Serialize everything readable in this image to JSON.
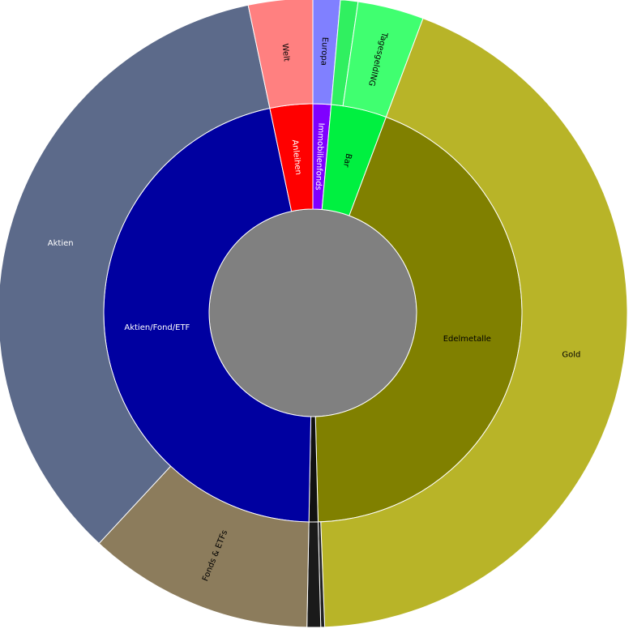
{
  "chart_data": {
    "type": "sunburst",
    "center_color": "#808080",
    "segments": [
      {
        "label": "Immobilienfonds",
        "value": 1.4,
        "color": "#7f00ff",
        "children": [
          {
            "label": "Europa",
            "value": 1.4,
            "color": "#8080ff"
          }
        ]
      },
      {
        "label": "Bar",
        "value": 4.3,
        "color": "#00f040",
        "children": [
          {
            "label": null,
            "value": 0.9,
            "color": "#30f060"
          },
          {
            "label": "TagesgeldING",
            "value": 3.4,
            "color": "#40ff70"
          }
        ]
      },
      {
        "label": "Edelmetalle",
        "value": 43.9,
        "color": "#808000",
        "children": [
          {
            "label": "Gold",
            "value": 43.7,
            "color": "#b8b428"
          },
          {
            "label": null,
            "value": 0.2,
            "color": "#222222"
          }
        ]
      },
      {
        "label": null,
        "value": 0.7,
        "color": "#111111",
        "children": [
          {
            "label": null,
            "value": 0.7,
            "color": "#1a1a1a"
          }
        ]
      },
      {
        "label": "Aktien/Fond/ETF",
        "value": 46.4,
        "color": "#0000a0",
        "children": [
          {
            "label": "Fonds & ETFs",
            "value": 11.6,
            "color": "#8c7c5c"
          },
          {
            "label": "Aktien",
            "value": 34.8,
            "color": "#5c6a8a"
          }
        ]
      },
      {
        "label": "Anleihen",
        "value": 3.3,
        "color": "#ff0000",
        "children": [
          {
            "label": "Welt",
            "value": 3.3,
            "color": "#ff8080"
          }
        ]
      }
    ]
  }
}
